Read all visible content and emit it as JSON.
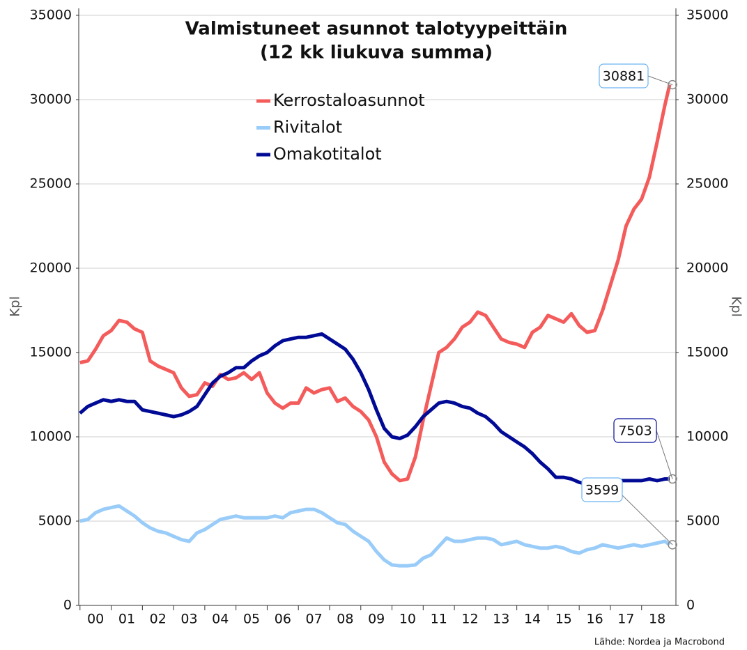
{
  "chart_data": {
    "type": "line",
    "title": "Valmistuneet asunnot talotyypeittäin",
    "subtitle": "(12 kk liukuva summa)",
    "y_label": "Kpl",
    "y2_label": "Kpl",
    "source": "Lähde: Nordea ja Macrobond",
    "x": [
      0,
      0.25,
      0.5,
      0.75,
      1,
      1.25,
      1.5,
      1.75,
      2,
      2.25,
      2.5,
      2.75,
      3,
      3.25,
      3.5,
      3.75,
      4,
      4.25,
      4.5,
      4.75,
      5,
      5.25,
      5.5,
      5.75,
      6,
      6.25,
      6.5,
      6.75,
      7,
      7.25,
      7.5,
      7.75,
      8,
      8.25,
      8.5,
      8.75,
      9,
      9.25,
      9.5,
      9.75,
      10,
      10.25,
      10.5,
      10.75,
      11,
      11.25,
      11.5,
      11.75,
      12,
      12.25,
      12.5,
      12.75,
      13,
      13.25,
      13.5,
      13.75,
      14,
      14.25,
      14.5,
      14.75,
      15,
      15.25,
      15.5,
      15.75,
      16,
      16.25,
      16.5,
      16.75,
      17,
      17.25,
      17.5,
      17.75,
      18,
      18.25,
      18.5,
      18.75,
      18.9
    ],
    "xlim": [
      -0.04,
      19.1
    ],
    "xticks": [
      {
        "value": 0.5,
        "label": "00"
      },
      {
        "value": 1.5,
        "label": "01"
      },
      {
        "value": 2.5,
        "label": "02"
      },
      {
        "value": 3.5,
        "label": "03"
      },
      {
        "value": 4.5,
        "label": "04"
      },
      {
        "value": 5.5,
        "label": "05"
      },
      {
        "value": 6.5,
        "label": "06"
      },
      {
        "value": 7.5,
        "label": "07"
      },
      {
        "value": 8.5,
        "label": "08"
      },
      {
        "value": 9.5,
        "label": "09"
      },
      {
        "value": 10.5,
        "label": "10"
      },
      {
        "value": 11.5,
        "label": "11"
      },
      {
        "value": 12.5,
        "label": "12"
      },
      {
        "value": 13.5,
        "label": "13"
      },
      {
        "value": 14.5,
        "label": "14"
      },
      {
        "value": 15.5,
        "label": "15"
      },
      {
        "value": 16.5,
        "label": "16"
      },
      {
        "value": 17.5,
        "label": "17"
      },
      {
        "value": 18.5,
        "label": "18"
      }
    ],
    "ylim": [
      0,
      35000
    ],
    "yticks": [
      0,
      5000,
      10000,
      15000,
      20000,
      25000,
      30000,
      35000
    ],
    "y2lim": [
      0,
      35000
    ],
    "y2ticks": [
      0,
      5000,
      10000,
      15000,
      20000,
      25000,
      30000,
      35000
    ],
    "grid": true,
    "series": [
      {
        "name": "Kerrostaloasunnot",
        "color": "#f45b5b",
        "values": [
          14400,
          14500,
          15200,
          16000,
          16300,
          16900,
          16800,
          16400,
          16200,
          14500,
          14200,
          14000,
          13800,
          12900,
          12400,
          12500,
          13200,
          13000,
          13700,
          13400,
          13500,
          13800,
          13400,
          13800,
          12600,
          12000,
          11700,
          12000,
          12000,
          12900,
          12600,
          12800,
          12900,
          12100,
          12300,
          11800,
          11500,
          11000,
          10000,
          8500,
          7800,
          7400,
          7500,
          8800,
          11000,
          13000,
          15000,
          15300,
          15800,
          16500,
          16800,
          17400,
          17200,
          16500,
          15800,
          15600,
          15500,
          15300,
          16200,
          16500,
          17200,
          17000,
          16800,
          17300,
          16600,
          16200,
          16300,
          17500,
          19000,
          20500,
          22500,
          23500,
          24100,
          25400,
          27500,
          29700,
          30881
        ]
      },
      {
        "name": "Rivitalot",
        "color": "#99ccf8",
        "values": [
          5000,
          5100,
          5500,
          5700,
          5800,
          5900,
          5600,
          5300,
          4900,
          4600,
          4400,
          4300,
          4100,
          3900,
          3800,
          4300,
          4500,
          4800,
          5100,
          5200,
          5300,
          5200,
          5200,
          5200,
          5200,
          5300,
          5200,
          5500,
          5600,
          5700,
          5700,
          5500,
          5200,
          4900,
          4800,
          4400,
          4100,
          3800,
          3200,
          2700,
          2400,
          2350,
          2350,
          2400,
          2800,
          3000,
          3500,
          4000,
          3800,
          3800,
          3900,
          4000,
          4000,
          3900,
          3600,
          3700,
          3800,
          3600,
          3500,
          3400,
          3400,
          3500,
          3400,
          3200,
          3100,
          3300,
          3400,
          3600,
          3500,
          3400,
          3500,
          3600,
          3500,
          3600,
          3700,
          3800,
          3599
        ]
      },
      {
        "name": "Omakotitalot",
        "color": "#000a94",
        "values": [
          11400,
          11800,
          12000,
          12200,
          12100,
          12200,
          12100,
          12100,
          11600,
          11500,
          11400,
          11300,
          11200,
          11300,
          11500,
          11800,
          12500,
          13200,
          13600,
          13800,
          14100,
          14100,
          14500,
          14800,
          15000,
          15400,
          15700,
          15800,
          15900,
          15900,
          16000,
          16100,
          15800,
          15500,
          15200,
          14600,
          13800,
          12800,
          11600,
          10500,
          10000,
          9900,
          10100,
          10600,
          11200,
          11600,
          12000,
          12100,
          12000,
          11800,
          11700,
          11400,
          11200,
          10800,
          10300,
          10000,
          9700,
          9400,
          9000,
          8500,
          8100,
          7600,
          7600,
          7500,
          7300,
          7200,
          7100,
          7200,
          7300,
          7400,
          7400,
          7400,
          7400,
          7500,
          7400,
          7500,
          7503
        ]
      }
    ]
  }
}
